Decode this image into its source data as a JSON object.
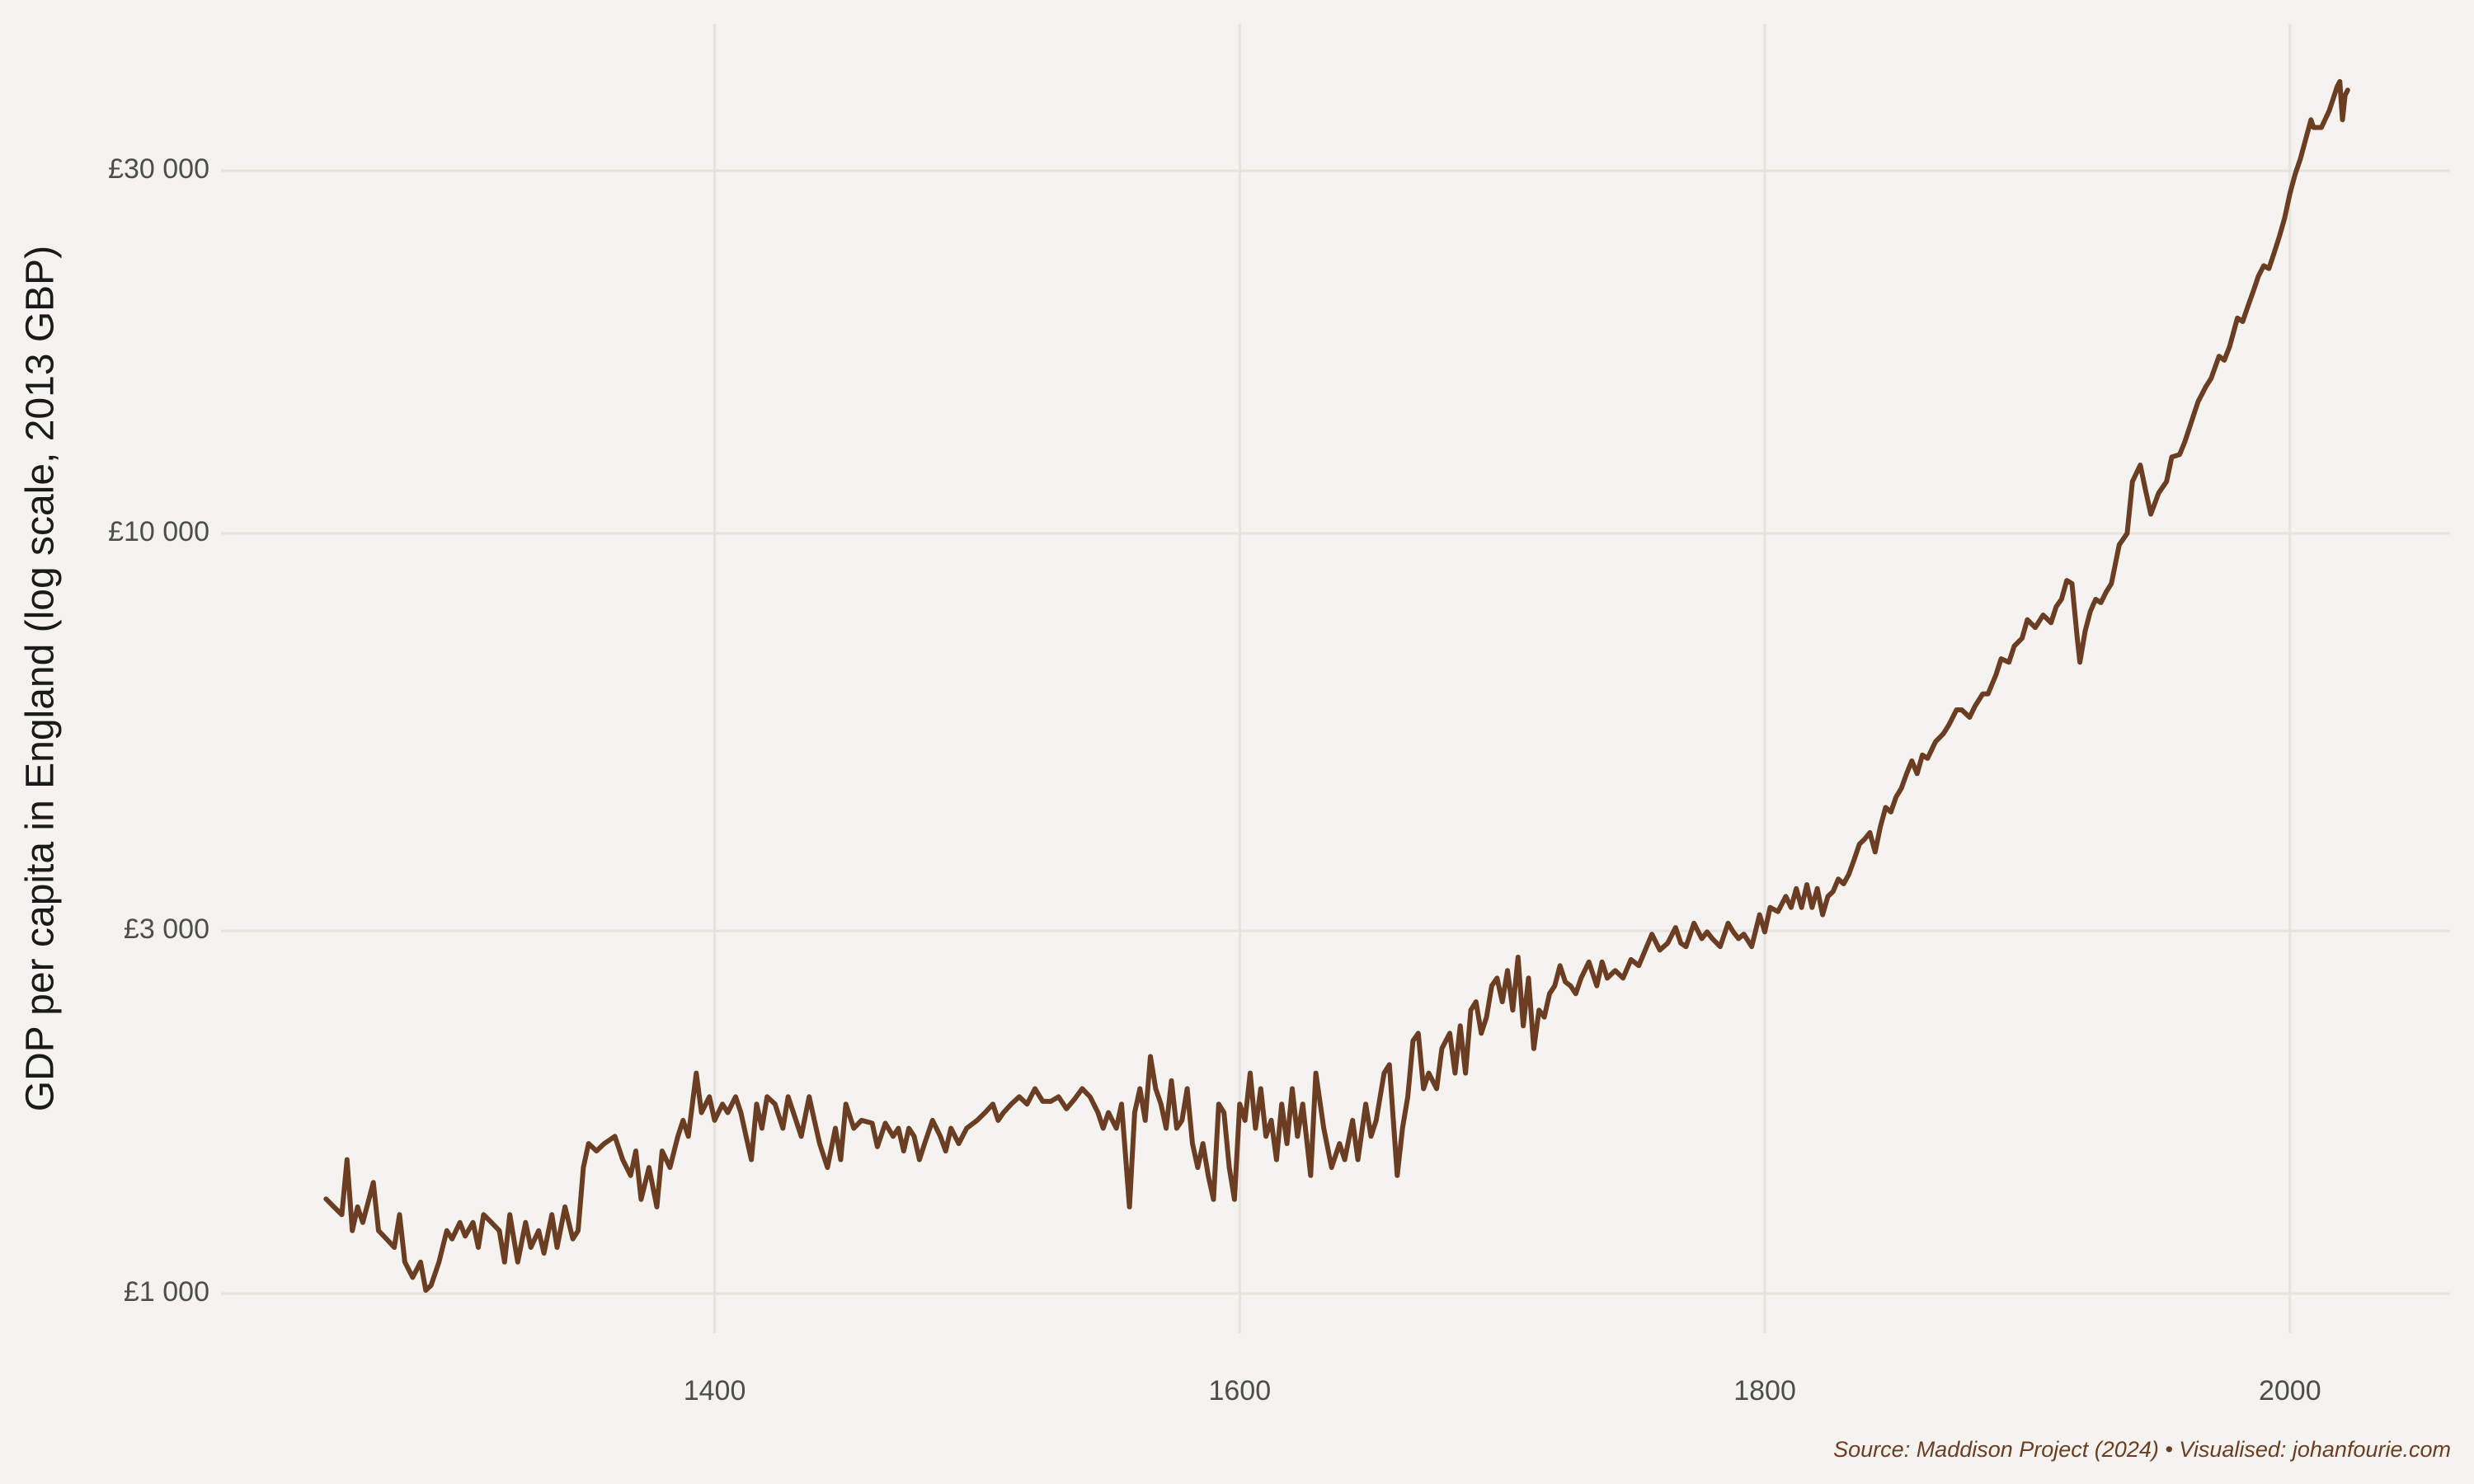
{
  "chart_data": {
    "type": "line",
    "y_label": "GDP per capita in England (log scale, 2013 GBP)",
    "source": "Source: Maddison Project (2024) • Visualised: johanfourie.com",
    "color": "#6b3d22",
    "log_y": true,
    "grid": true,
    "xlim": [
      1212,
      2061
    ],
    "ylim": [
      887,
      46800
    ],
    "xticks": [
      1400,
      1600,
      1800,
      2000
    ],
    "yticks": [
      {
        "value": 1000,
        "label": "£1 000"
      },
      {
        "value": 3000,
        "label": "£3 000"
      },
      {
        "value": 10000,
        "label": "£10 000"
      },
      {
        "value": 30000,
        "label": "£30 000"
      }
    ],
    "x": [
      1252,
      1255,
      1258,
      1260,
      1262,
      1264,
      1266,
      1270,
      1272,
      1275,
      1278,
      1280,
      1282,
      1285,
      1288,
      1290,
      1292,
      1295,
      1298,
      1300,
      1303,
      1305,
      1308,
      1310,
      1312,
      1315,
      1318,
      1320,
      1322,
      1325,
      1328,
      1330,
      1333,
      1335,
      1338,
      1340,
      1343,
      1346,
      1348,
      1350,
      1352,
      1355,
      1358,
      1362,
      1365,
      1368,
      1370,
      1372,
      1375,
      1378,
      1380,
      1383,
      1386,
      1388,
      1390,
      1393,
      1395,
      1398,
      1400,
      1403,
      1405,
      1408,
      1410,
      1412,
      1414,
      1416,
      1418,
      1420,
      1423,
      1426,
      1428,
      1430,
      1433,
      1436,
      1438,
      1440,
      1443,
      1446,
      1448,
      1450,
      1453,
      1456,
      1460,
      1462,
      1465,
      1468,
      1470,
      1472,
      1474,
      1476,
      1478,
      1480,
      1483,
      1486,
      1488,
      1490,
      1493,
      1496,
      1500,
      1503,
      1506,
      1508,
      1510,
      1513,
      1516,
      1519,
      1522,
      1525,
      1528,
      1531,
      1534,
      1537,
      1540,
      1543,
      1546,
      1548,
      1550,
      1553,
      1555,
      1558,
      1560,
      1562,
      1564,
      1566,
      1568,
      1570,
      1572,
      1574,
      1576,
      1578,
      1580,
      1582,
      1584,
      1586,
      1588,
      1590,
      1592,
      1594,
      1596,
      1598,
      1600,
      1602,
      1604,
      1606,
      1608,
      1610,
      1612,
      1614,
      1616,
      1618,
      1620,
      1622,
      1624,
      1627,
      1629,
      1632,
      1635,
      1638,
      1640,
      1643,
      1645,
      1648,
      1650,
      1652,
      1655,
      1657,
      1660,
      1662,
      1664,
      1666,
      1668,
      1670,
      1672,
      1675,
      1677,
      1680,
      1682,
      1684,
      1686,
      1688,
      1690,
      1692,
      1694,
      1696,
      1698,
      1700,
      1702,
      1704,
      1706,
      1708,
      1710,
      1712,
      1714,
      1716,
      1718,
      1720,
      1722,
      1724,
      1726,
      1728,
      1730,
      1733,
      1736,
      1738,
      1740,
      1743,
      1746,
      1749,
      1752,
      1755,
      1757,
      1760,
      1763,
      1766,
      1768,
      1770,
      1773,
      1776,
      1778,
      1780,
      1783,
      1786,
      1788,
      1790,
      1792,
      1795,
      1798,
      1800,
      1802,
      1805,
      1808,
      1810,
      1812,
      1814,
      1816,
      1818,
      1820,
      1822,
      1824,
      1826,
      1828,
      1830,
      1832,
      1834,
      1836,
      1838,
      1840,
      1842,
      1844,
      1846,
      1848,
      1850,
      1852,
      1854,
      1856,
      1858,
      1860,
      1862,
      1865,
      1868,
      1870,
      1873,
      1875,
      1878,
      1880,
      1883,
      1885,
      1888,
      1890,
      1893,
      1895,
      1898,
      1900,
      1903,
      1906,
      1909,
      1911,
      1913,
      1915,
      1917,
      1919,
      1920,
      1922,
      1924,
      1926,
      1928,
      1930,
      1932,
      1935,
      1938,
      1940,
      1943,
      1945,
      1947,
      1950,
      1953,
      1955,
      1958,
      1960,
      1963,
      1965,
      1968,
      1970,
      1973,
      1975,
      1977,
      1980,
      1982,
      1984,
      1986,
      1988,
      1990,
      1992,
      1994,
      1996,
      1998,
      2000,
      2002,
      2004,
      2006,
      2008,
      2009,
      2012,
      2015,
      2018,
      2019,
      2020,
      2021,
      2022
    ],
    "values": [
      1332,
      1300,
      1270,
      1500,
      1210,
      1300,
      1240,
      1400,
      1210,
      1180,
      1150,
      1270,
      1100,
      1050,
      1100,
      1010,
      1025,
      1100,
      1210,
      1180,
      1240,
      1190,
      1240,
      1150,
      1270,
      1240,
      1210,
      1100,
      1270,
      1100,
      1240,
      1150,
      1210,
      1130,
      1270,
      1150,
      1300,
      1180,
      1210,
      1465,
      1575,
      1540,
      1575,
      1610,
      1500,
      1430,
      1540,
      1330,
      1465,
      1300,
      1540,
      1465,
      1610,
      1690,
      1610,
      1950,
      1730,
      1815,
      1690,
      1775,
      1730,
      1815,
      1730,
      1610,
      1500,
      1775,
      1650,
      1815,
      1775,
      1650,
      1815,
      1730,
      1610,
      1815,
      1690,
      1575,
      1465,
      1650,
      1500,
      1775,
      1650,
      1690,
      1675,
      1560,
      1675,
      1610,
      1650,
      1540,
      1650,
      1610,
      1500,
      1575,
      1690,
      1610,
      1540,
      1650,
      1575,
      1650,
      1690,
      1730,
      1775,
      1690,
      1730,
      1775,
      1815,
      1775,
      1860,
      1790,
      1790,
      1815,
      1750,
      1800,
      1860,
      1815,
      1730,
      1650,
      1730,
      1650,
      1775,
      1300,
      1730,
      1860,
      1690,
      2050,
      1860,
      1775,
      1650,
      1905,
      1650,
      1690,
      1860,
      1575,
      1465,
      1575,
      1430,
      1330,
      1775,
      1730,
      1465,
      1330,
      1775,
      1690,
      1950,
      1650,
      1860,
      1610,
      1690,
      1500,
      1775,
      1575,
      1860,
      1610,
      1775,
      1430,
      1950,
      1650,
      1465,
      1575,
      1500,
      1690,
      1500,
      1775,
      1610,
      1690,
      1950,
      2000,
      1430,
      1650,
      1815,
      2150,
      2200,
      1860,
      1950,
      1860,
      2100,
      2200,
      1950,
      2250,
      1950,
      2360,
      2420,
      2200,
      2310,
      2540,
      2600,
      2420,
      2660,
      2360,
      2770,
      2250,
      2600,
      2100,
      2360,
      2310,
      2480,
      2540,
      2700,
      2570,
      2540,
      2480,
      2600,
      2730,
      2540,
      2730,
      2600,
      2660,
      2600,
      2750,
      2700,
      2860,
      2970,
      2830,
      2890,
      3030,
      2890,
      2860,
      3070,
      2930,
      2990,
      2930,
      2860,
      3070,
      2990,
      2930,
      2970,
      2860,
      3150,
      2990,
      3220,
      3180,
      3330,
      3220,
      3410,
      3220,
      3450,
      3220,
      3410,
      3150,
      3330,
      3380,
      3510,
      3460,
      3560,
      3720,
      3900,
      3960,
      4040,
      3810,
      4110,
      4360,
      4300,
      4500,
      4620,
      4830,
      5020,
      4830,
      5110,
      5060,
      5320,
      5450,
      5590,
      5860,
      5860,
      5730,
      5920,
      6150,
      6150,
      6510,
      6840,
      6770,
      7110,
      7280,
      7700,
      7520,
      7810,
      7630,
      8010,
      8190,
      8670,
      8590,
      7280,
      6770,
      7440,
      7900,
      8190,
      8110,
      8370,
      8590,
      9660,
      10000,
      11700,
      12300,
      11400,
      10600,
      11300,
      11700,
      12600,
      12700,
      13200,
      14200,
      14900,
      15600,
      16000,
      17100,
      16900,
      17600,
      19200,
      19000,
      19900,
      20800,
      21800,
      22500,
      22300,
      23400,
      24600,
      26000,
      28000,
      29700,
      31100,
      33000,
      35000,
      34200,
      34200,
      36000,
      38700,
      39300,
      35000,
      37700,
      38300
    ]
  }
}
